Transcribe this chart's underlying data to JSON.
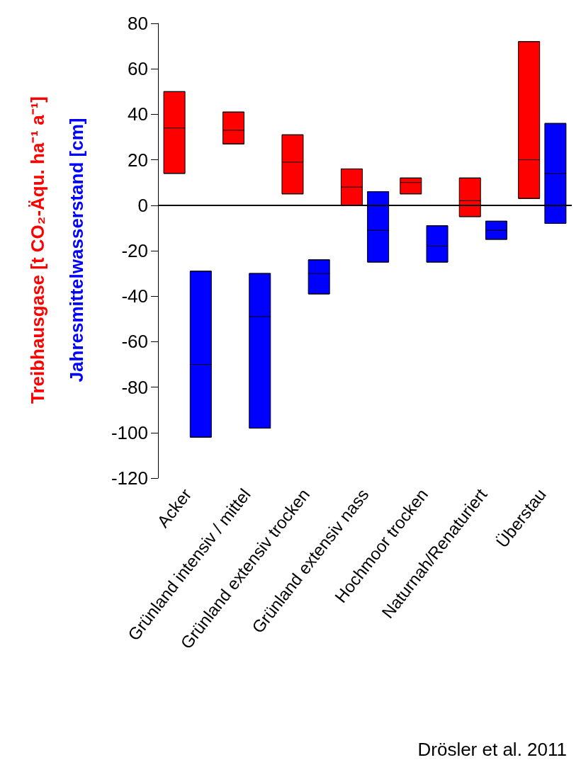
{
  "chart_data": {
    "type": "box",
    "categories": [
      "Acker",
      "Grünland intensiv / mittel",
      "Grünland extensiv trocken",
      "Grünland extensiv nass",
      "Hochmoor trocken",
      "Naturnah/Renaturiert",
      "Überstau"
    ],
    "series": [
      {
        "name": "Treibhausgase [t CO₂-Äqu. ha⁻¹ a⁻¹]",
        "color": "#ff0000",
        "boxes": [
          {
            "low": 14,
            "q1": 14,
            "median": 34,
            "q3": 50,
            "high": 50
          },
          {
            "low": 27,
            "q1": 27,
            "median": 33,
            "q3": 41,
            "high": 41
          },
          {
            "low": 5,
            "q1": 5,
            "median": 19,
            "q3": 31,
            "high": 31
          },
          {
            "low": 0,
            "q1": 0,
            "median": 8,
            "q3": 16,
            "high": 16
          },
          {
            "low": 5,
            "q1": 5,
            "median": 10,
            "q3": 12,
            "high": 12
          },
          {
            "low": -5,
            "q1": -5,
            "median": 2,
            "q3": 12,
            "high": 12
          },
          {
            "low": 3,
            "q1": 3,
            "median": 20,
            "q3": 72,
            "high": 72
          }
        ]
      },
      {
        "name": "Jahresmittelwasserstand [cm]",
        "color": "#0000ff",
        "boxes": [
          {
            "low": -102,
            "q1": -102,
            "median": -70,
            "q3": -29,
            "high": -29
          },
          {
            "low": -98,
            "q1": -98,
            "median": -49,
            "q3": -30,
            "high": -30
          },
          {
            "low": -39,
            "q1": -39,
            "median": -30,
            "q3": -24,
            "high": -24
          },
          {
            "low": -25,
            "q1": -25,
            "median": -11,
            "q3": 6,
            "high": 6
          },
          {
            "low": -25,
            "q1": -25,
            "median": -18,
            "q3": -9,
            "high": -9
          },
          {
            "low": -15,
            "q1": -15,
            "median": -11,
            "q3": -7,
            "high": -7
          },
          {
            "low": -8,
            "q1": -8,
            "median": 14,
            "q3": 36,
            "high": 36
          }
        ]
      }
    ],
    "ylim": [
      -120,
      80
    ],
    "yticks": [
      -120,
      -100,
      -80,
      -60,
      -40,
      -20,
      0,
      20,
      40,
      60,
      80
    ],
    "ref_lines": [
      {
        "axis": "y",
        "value": 0,
        "color": "#000000"
      }
    ],
    "annotations": [
      "Drösler et al. 2011"
    ]
  }
}
